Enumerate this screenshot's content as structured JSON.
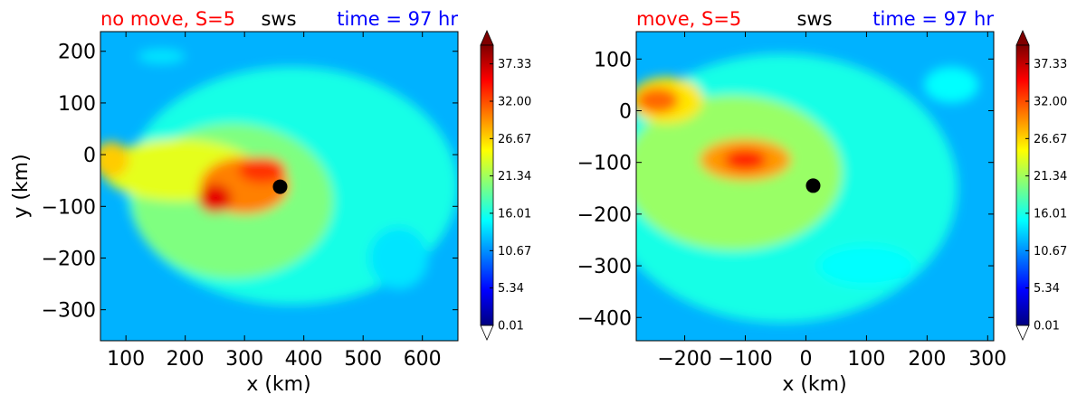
{
  "chart_data": [
    {
      "type": "heatmap",
      "title_left": "no move, S=5",
      "title_center": "sws",
      "title_right": "time = 97 hr",
      "title_colors": {
        "left": "#ff0000",
        "center": "#000000",
        "right": "#0000ff"
      },
      "xlabel": "x (km)",
      "ylabel": "y (km)",
      "xlim": [
        57,
        660
      ],
      "ylim": [
        -360,
        238
      ],
      "xticks": [
        100,
        200,
        300,
        400,
        500,
        600
      ],
      "yticks": [
        200,
        100,
        0,
        -100,
        -200,
        -300
      ],
      "xtick_labels": [
        "100",
        "200",
        "300",
        "400",
        "500",
        "600"
      ],
      "ytick_labels": [
        "200",
        "100",
        "0",
        "−100",
        "−200",
        "−300"
      ],
      "center_marker": {
        "x": 360,
        "y": -62
      },
      "background_value": 12,
      "features": [
        {
          "x": 380,
          "y": -60,
          "rx": 280,
          "ry": 230,
          "value": 16
        },
        {
          "x": 280,
          "y": -90,
          "rx": 170,
          "ry": 150,
          "value": 20
        },
        {
          "x": 190,
          "y": -30,
          "rx": 130,
          "ry": 60,
          "value": 24
        },
        {
          "x": 300,
          "y": -60,
          "rx": 75,
          "ry": 55,
          "value": 30
        },
        {
          "x": 250,
          "y": -85,
          "rx": 28,
          "ry": 28,
          "value": 36
        },
        {
          "x": 330,
          "y": -30,
          "rx": 40,
          "ry": 25,
          "value": 33
        },
        {
          "x": 75,
          "y": -10,
          "rx": 30,
          "ry": 35,
          "value": 27
        },
        {
          "x": 560,
          "y": -200,
          "rx": 50,
          "ry": 60,
          "value": 14
        },
        {
          "x": 160,
          "y": 190,
          "rx": 40,
          "ry": 15,
          "value": 14
        }
      ],
      "colorbar": {
        "ticks": [
          "37.33",
          "32.00",
          "26.67",
          "21.34",
          "16.01",
          "10.67",
          "5.34",
          "0.01"
        ],
        "min": 0.01,
        "max": 40,
        "extend": "both"
      }
    },
    {
      "type": "heatmap",
      "title_left": "move, S=5",
      "title_center": "sws",
      "title_right": "time = 97 hr",
      "title_colors": {
        "left": "#ff0000",
        "center": "#000000",
        "right": "#0000ff"
      },
      "xlabel": "x (km)",
      "ylabel": "",
      "xlim": [
        -280,
        310
      ],
      "ylim": [
        -445,
        153
      ],
      "xticks": [
        -200,
        -100,
        0,
        100,
        200,
        300
      ],
      "yticks": [
        100,
        0,
        -100,
        -200,
        -300,
        -400
      ],
      "xtick_labels": [
        "−200",
        "−100",
        "0",
        "100",
        "200",
        "300"
      ],
      "ytick_labels": [
        "100",
        "0",
        "−100",
        "−200",
        "−300",
        "−400"
      ],
      "center_marker": {
        "x": 12,
        "y": -145
      },
      "background_value": 12,
      "features": [
        {
          "x": -40,
          "y": -150,
          "rx": 290,
          "ry": 260,
          "value": 16
        },
        {
          "x": -120,
          "y": -120,
          "rx": 180,
          "ry": 150,
          "value": 21
        },
        {
          "x": -230,
          "y": 20,
          "rx": 60,
          "ry": 45,
          "value": 26
        },
        {
          "x": -245,
          "y": 20,
          "rx": 35,
          "ry": 25,
          "value": 31
        },
        {
          "x": -100,
          "y": -95,
          "rx": 75,
          "ry": 40,
          "value": 29
        },
        {
          "x": -100,
          "y": -95,
          "rx": 35,
          "ry": 20,
          "value": 34
        },
        {
          "x": 240,
          "y": 50,
          "rx": 45,
          "ry": 35,
          "value": 15
        },
        {
          "x": 100,
          "y": -300,
          "rx": 80,
          "ry": 40,
          "value": 15
        }
      ],
      "colorbar": {
        "ticks": [
          "37.33",
          "32.00",
          "26.67",
          "21.34",
          "16.01",
          "10.67",
          "5.34",
          "0.01"
        ],
        "min": 0.01,
        "max": 40,
        "extend": "both"
      }
    }
  ]
}
